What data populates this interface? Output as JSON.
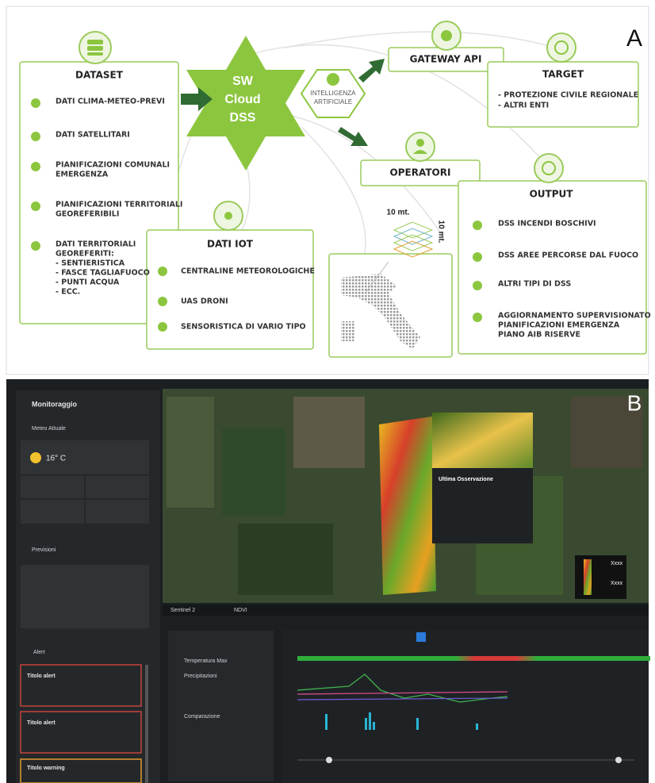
{
  "panel_a": {
    "label": "A",
    "dataset": {
      "title": "DATASET",
      "items": [
        [
          "DATI CLIMA-METEO-PREVI"
        ],
        [
          "DATI SATELLITARI"
        ],
        [
          "PIANIFICAZIONI COMUNALI",
          "EMERGENZA"
        ],
        [
          "PIANIFICAZIONI TERRITORIALI",
          "GEOREFERIBILI"
        ],
        [
          "DATI TERRITORIALI",
          "GEOREFERITI:",
          "- SENTIERISTICA",
          "- FASCE TAGLIAFUOCO",
          "- PUNTI ACQUA",
          "- ECC."
        ]
      ]
    },
    "core": {
      "lines": [
        "SW",
        "Cloud",
        "DSS"
      ],
      "ai": [
        "INTELLIGENZA",
        "ARTIFICIALE"
      ]
    },
    "gateway": "GATEWAY API",
    "target": {
      "title": "TARGET",
      "items": [
        "- PROTEZIONE CIVILE REGIONALE",
        "- ALTRI ENTI"
      ]
    },
    "operatori": "OPERATORI",
    "output": {
      "title": "OUTPUT",
      "items": [
        [
          "DSS INCENDI BOSCHIVI"
        ],
        [
          "DSS AREE PERCORSE DAL FUOCO"
        ],
        [
          "ALTRI TIPI DI DSS"
        ],
        [
          "AGGIORNAMENTO SUPERVISIONATO",
          "PIANIFICAZIONI EMERGENZA",
          "PIANO AIB RISERVE"
        ]
      ]
    },
    "iot": {
      "title": "DATI IOT",
      "items": [
        "CENTRALINE METEOROLOGICHE",
        "UAS DRONI",
        "SENSORISTICA DI VARIO TIPO"
      ]
    },
    "scale": [
      "10 mt.",
      "10 mt."
    ]
  },
  "panel_b": {
    "label": "B",
    "sidebar": {
      "title": "Monitoraggio",
      "meteo": "Meteo Attuale",
      "temp": "16° C",
      "forecast": "Previsioni",
      "alerts_tab": "Alert",
      "alerts": [
        "Titolo alert",
        "Titolo alert",
        "Titolo warning"
      ]
    },
    "map": {
      "popup_title": "Ultima Osservazione",
      "source": "Sentinel 2",
      "index": "NDVI",
      "legend": [
        "Xxxx",
        "Xxxx"
      ]
    },
    "chart_panel": {
      "options": [
        "Temperatura Max",
        "Precipitazioni",
        "Comparazione"
      ]
    }
  }
}
